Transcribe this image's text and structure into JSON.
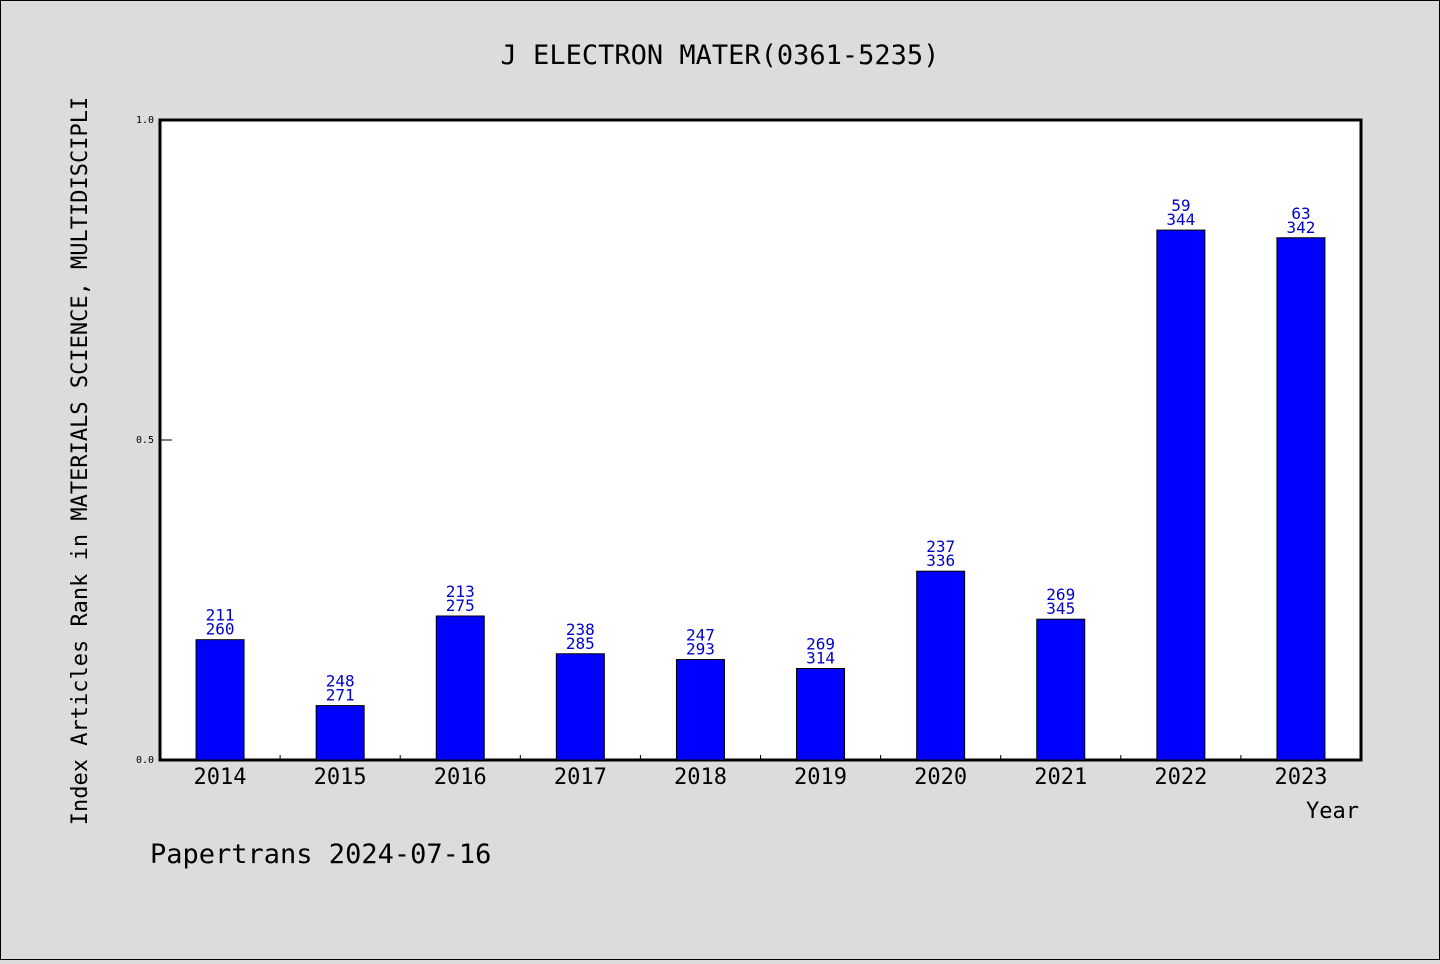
{
  "chart_data": {
    "type": "bar",
    "title": "J ELECTRON MATER(0361-5235)",
    "xlabel": "Year",
    "ylabel": "Index Articles Rank in MATERIALS SCIENCE, MULTIDISCIPLI",
    "ylim": [
      0,
      1.0
    ],
    "yticks": [
      "0.0",
      "0.5",
      "1.0"
    ],
    "categories": [
      "2014",
      "2015",
      "2016",
      "2017",
      "2018",
      "2019",
      "2020",
      "2021",
      "2022",
      "2023"
    ],
    "values": [
      0.188,
      0.085,
      0.225,
      0.166,
      0.157,
      0.143,
      0.295,
      0.22,
      0.828,
      0.816
    ],
    "labels_top": [
      "211",
      "248",
      "213",
      "238",
      "247",
      "269",
      "237",
      "269",
      "59",
      "63"
    ],
    "labels_bottom": [
      "260",
      "271",
      "275",
      "285",
      "293",
      "314",
      "336",
      "345",
      "344",
      "342"
    ],
    "grid": false,
    "bar_color": "#0000ff",
    "label_color": "#0000cc"
  },
  "footer": {
    "source": "Papertrans 2024-07-16"
  }
}
